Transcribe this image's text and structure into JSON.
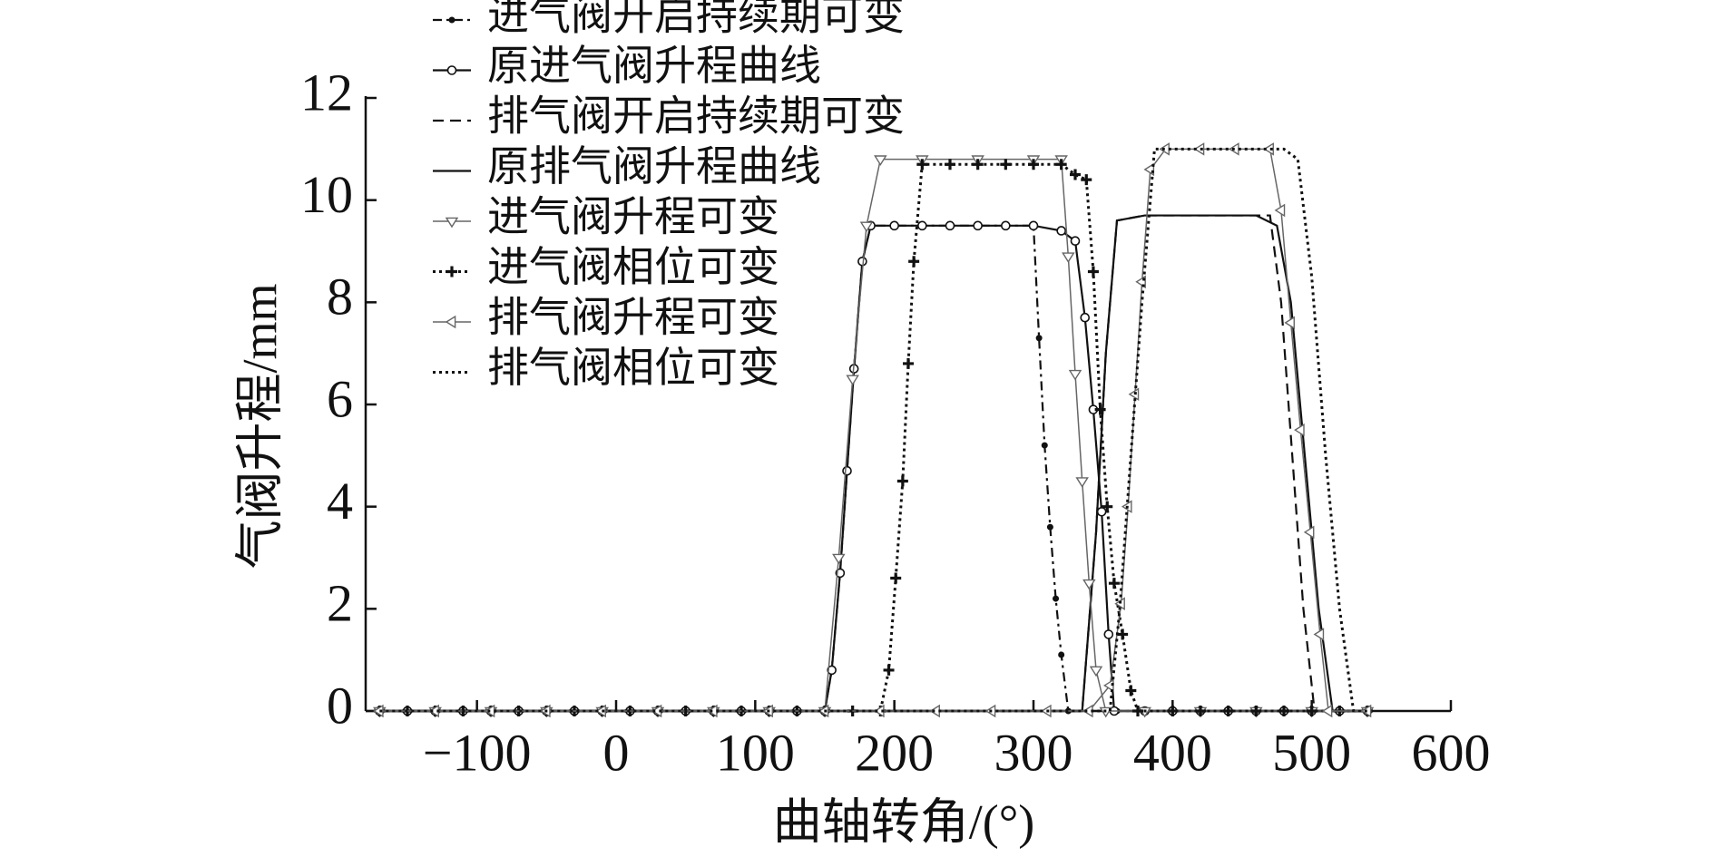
{
  "chart_data": {
    "type": "line",
    "x_label": "曲轴转角/(°)",
    "y_label": "气阀升程/mm",
    "xlim": [
      -180,
      600
    ],
    "ylim": [
      0,
      12
    ],
    "xticks": [
      {
        "value": -100,
        "label": "−100"
      },
      0,
      100,
      200,
      300,
      400,
      500,
      600
    ],
    "yticks": [
      0,
      2,
      4,
      6,
      8,
      10,
      12
    ],
    "legend": "upper left",
    "series": [
      {
        "name": "进气阀开启持续期可变",
        "color": "#111111",
        "line": "dashdot",
        "marker": "dot",
        "x": [
          -170,
          -150,
          -130,
          -110,
          -90,
          -70,
          -50,
          -30,
          -10,
          10,
          30,
          50,
          70,
          90,
          110,
          130,
          150,
          155,
          161,
          166,
          171,
          177,
          183,
          200,
          220,
          240,
          260,
          280,
          300,
          304,
          308,
          312,
          316,
          320,
          325,
          340,
          360,
          380,
          400,
          420,
          440,
          460,
          480,
          500,
          520,
          540
        ],
        "values": [
          0,
          0,
          0,
          0,
          0,
          0,
          0,
          0,
          0,
          0,
          0,
          0,
          0,
          0,
          0,
          0,
          0,
          0.8,
          2.7,
          4.7,
          6.7,
          8.8,
          9.5,
          9.5,
          9.5,
          9.5,
          9.5,
          9.5,
          9.5,
          7.3,
          5.2,
          3.6,
          2.2,
          1.1,
          0,
          0,
          0,
          0,
          0,
          0,
          0,
          0,
          0,
          0,
          0,
          0
        ]
      },
      {
        "name": "原进气阀升程曲线",
        "color": "#111111",
        "line": "solid",
        "marker": "circle",
        "x": [
          -170,
          -150,
          -130,
          -110,
          -90,
          -70,
          -50,
          -30,
          -10,
          10,
          30,
          50,
          70,
          90,
          110,
          130,
          150,
          155,
          161,
          166,
          171,
          177,
          183,
          200,
          220,
          240,
          260,
          280,
          300,
          320,
          330,
          337,
          343,
          349,
          354,
          358,
          380,
          400,
          420,
          440,
          460,
          480,
          500,
          520,
          540
        ],
        "values": [
          0,
          0,
          0,
          0,
          0,
          0,
          0,
          0,
          0,
          0,
          0,
          0,
          0,
          0,
          0,
          0,
          0,
          0.8,
          2.7,
          4.7,
          6.7,
          8.8,
          9.5,
          9.5,
          9.5,
          9.5,
          9.5,
          9.5,
          9.5,
          9.4,
          9.2,
          7.7,
          5.9,
          3.9,
          1.5,
          0,
          0,
          0,
          0,
          0,
          0,
          0,
          0,
          0,
          0
        ]
      },
      {
        "name": "排气阀开启持续期可变",
        "color": "#111111",
        "line": "dash",
        "marker": "none",
        "x": [
          -170,
          335,
          345,
          352,
          360,
          380,
          440,
          470,
          478,
          486,
          494,
          502,
          540
        ],
        "values": [
          0,
          0,
          3.5,
          7,
          9.6,
          9.7,
          9.7,
          9.7,
          8,
          5,
          2,
          0,
          0
        ]
      },
      {
        "name": "原排气阀升程曲线",
        "color": "#111111",
        "line": "solid",
        "marker": "none",
        "x": [
          -170,
          335,
          345,
          352,
          360,
          380,
          460,
          475,
          485,
          495,
          505,
          515,
          540
        ],
        "values": [
          0,
          0,
          3.5,
          7,
          9.6,
          9.7,
          9.7,
          9.5,
          8,
          5,
          2,
          0,
          0
        ]
      },
      {
        "name": "进气阀升程可变",
        "color": "#666666",
        "line": "thin",
        "marker": "tri-down",
        "x": [
          -170,
          -130,
          -90,
          -50,
          -10,
          30,
          70,
          110,
          150,
          160,
          170,
          180,
          190,
          220,
          260,
          300,
          320,
          325,
          330,
          335,
          340,
          345,
          352,
          380,
          420,
          460,
          500,
          540
        ],
        "values": [
          0,
          0,
          0,
          0,
          0,
          0,
          0,
          0,
          0,
          3,
          6.5,
          9.5,
          10.8,
          10.8,
          10.8,
          10.8,
          10.8,
          8.9,
          6.6,
          4.5,
          2.5,
          0.8,
          0,
          0,
          0,
          0,
          0,
          0
        ]
      },
      {
        "name": "进气阀相位可变",
        "color": "#111111",
        "line": "dotted",
        "marker": "plus",
        "x": [
          -170,
          -150,
          -130,
          -110,
          -90,
          -70,
          -50,
          -30,
          -10,
          10,
          30,
          50,
          70,
          90,
          110,
          130,
          150,
          170,
          190,
          196,
          201,
          206,
          210,
          214,
          220,
          240,
          260,
          280,
          300,
          320,
          330,
          338,
          343,
          348,
          353,
          358,
          364,
          370,
          375,
          400,
          420,
          440,
          460,
          480,
          500,
          520,
          540
        ],
        "values": [
          0,
          0,
          0,
          0,
          0,
          0,
          0,
          0,
          0,
          0,
          0,
          0,
          0,
          0,
          0,
          0,
          0,
          0,
          0,
          0.8,
          2.6,
          4.5,
          6.8,
          8.8,
          10.7,
          10.7,
          10.7,
          10.7,
          10.7,
          10.7,
          10.5,
          10.4,
          8.6,
          5.9,
          4,
          2.5,
          1.5,
          0.4,
          0,
          0,
          0,
          0,
          0,
          0,
          0,
          0,
          0
        ]
      },
      {
        "name": "排气阀升程可变",
        "color": "#666666",
        "line": "thin",
        "marker": "tri-left",
        "x": [
          -170,
          -130,
          -90,
          -50,
          -10,
          30,
          70,
          110,
          150,
          190,
          230,
          270,
          310,
          340,
          355,
          363,
          368,
          373,
          378,
          384,
          395,
          420,
          445,
          470,
          478,
          485,
          492,
          499,
          506,
          512,
          540
        ],
        "values": [
          0,
          0,
          0,
          0,
          0,
          0,
          0,
          0,
          0,
          0,
          0,
          0,
          0,
          0,
          0.5,
          2.1,
          4,
          6.2,
          8.4,
          10.6,
          11,
          11,
          11,
          11,
          9.8,
          7.6,
          5.5,
          3.5,
          1.5,
          0,
          0
        ]
      },
      {
        "name": "排气阀相位可变",
        "color": "#111111",
        "line": "dotted",
        "marker": "none",
        "x": [
          -170,
          355,
          362,
          370,
          378,
          387,
          480,
          490,
          500,
          510,
          520,
          530,
          540
        ],
        "values": [
          0,
          0,
          2,
          5,
          8,
          11,
          11,
          10.8,
          8.5,
          5,
          2,
          0,
          0
        ]
      }
    ]
  }
}
